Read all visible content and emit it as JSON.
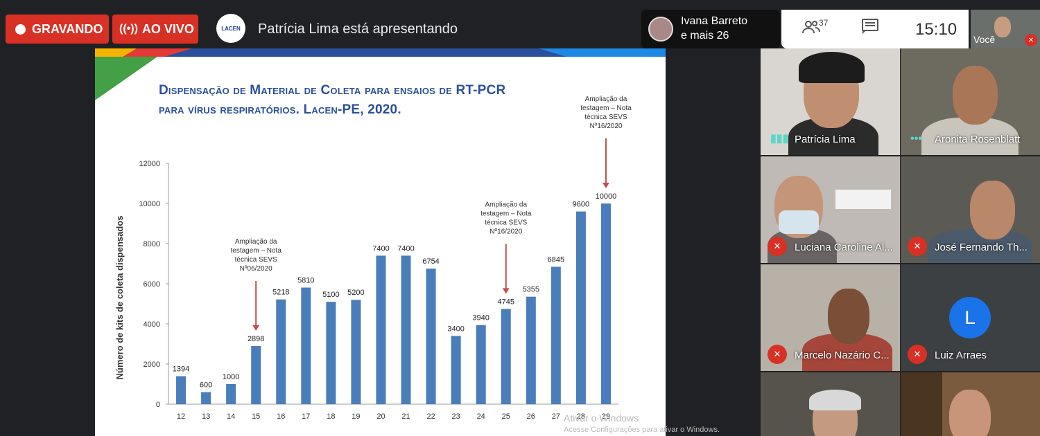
{
  "topbar": {
    "recording_label": "GRAVANDO",
    "live_label": "AO VIVO",
    "logo_text": "LACEN",
    "presenting_text": "Patrícia Lima está apresentando",
    "people_name": "Ivana Barreto",
    "people_more": "e mais 26",
    "participants_count": "37",
    "clock": "15:10",
    "self_label": "Você"
  },
  "slide": {
    "title_line1": "Dispensação de Material de Coleta para ensaios de RT-PCR",
    "title_line2": "para vírus respiratórios. Lacen-PE, 2020."
  },
  "chart_data": {
    "type": "bar",
    "ylabel": "Número de kits de coleta dispensados",
    "ylim": [
      0,
      12000
    ],
    "yticks": [
      0,
      2000,
      4000,
      6000,
      8000,
      10000,
      12000
    ],
    "categories": [
      "12",
      "13",
      "14",
      "15",
      "16",
      "17",
      "18",
      "19",
      "20",
      "21",
      "22",
      "23",
      "24",
      "25",
      "26",
      "27",
      "28",
      "29"
    ],
    "values": [
      1394,
      600,
      1000,
      2898,
      5218,
      5810,
      5100,
      5200,
      7400,
      7400,
      6754,
      3400,
      3940,
      4745,
      5355,
      6845,
      9600,
      10000
    ],
    "bar_color": "#4a7ebb",
    "annotations": [
      {
        "category": "15",
        "lines": [
          "Ampliação da",
          "testagem – Nota",
          "técnica SEVS",
          "Nº06/2020"
        ]
      },
      {
        "category": "25",
        "lines": [
          "Ampliação da",
          "testagem – Nota",
          "técnica SEVS",
          "Nº16/2020"
        ]
      },
      {
        "category": "29",
        "lines": [
          "Ampliação da",
          "testagem – Nota",
          "técnica SEVS",
          "Nº16/2020"
        ]
      }
    ]
  },
  "watermark": {
    "line1": "Ativar o Windows",
    "line2": "Acesse Configurações para ativar o Windows."
  },
  "participants": [
    {
      "name": "Patrícia Lima",
      "state": "speaking"
    },
    {
      "name": "Aronita Rosenblatt",
      "state": "speaking"
    },
    {
      "name": "Luciana Caroline Al...",
      "state": "muted"
    },
    {
      "name": "José Fernando Th...",
      "state": "muted"
    },
    {
      "name": "Marcelo Nazário C...",
      "state": "muted"
    },
    {
      "name": "Luiz Arraes",
      "state": "muted",
      "avatar_letter": "L"
    }
  ]
}
